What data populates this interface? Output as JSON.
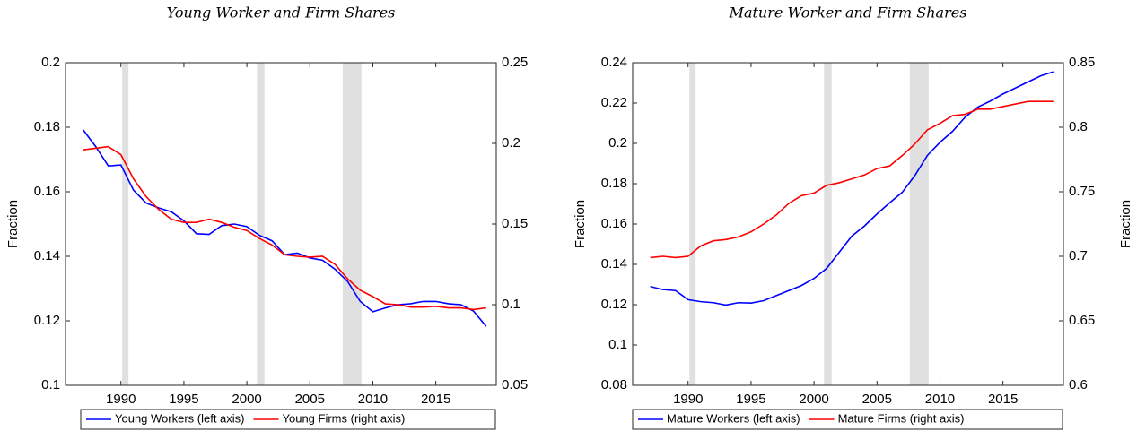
{
  "chart_data": [
    {
      "type": "line",
      "title": "Young Worker and Firm Shares",
      "x": [
        1987,
        1988,
        1989,
        1990,
        1991,
        1992,
        1993,
        1994,
        1995,
        1996,
        1997,
        1998,
        1999,
        2000,
        2001,
        2002,
        2003,
        2004,
        2005,
        2006,
        2007,
        2008,
        2009,
        2010,
        2011,
        2012,
        2013,
        2014,
        2015,
        2016,
        2017,
        2018,
        2019
      ],
      "xlim": [
        1985.6,
        2019.8
      ],
      "xticks": [
        1990,
        1995,
        2000,
        2005,
        2010,
        2015
      ],
      "ylim": [
        0.1,
        0.2
      ],
      "yticks": [
        0.1,
        0.12,
        0.14,
        0.16,
        0.18,
        0.2
      ],
      "y2lim": [
        0.05,
        0.25
      ],
      "y2ticks": [
        0.05,
        0.1,
        0.15,
        0.2,
        0.25
      ],
      "ylabel": "Fraction",
      "shading": [
        [
          1990.1,
          1990.6
        ],
        [
          2000.8,
          2001.4
        ],
        [
          2007.6,
          2009.1
        ]
      ],
      "legend": "bottom",
      "series": [
        {
          "name": "Young Workers (left axis)",
          "color": "#0000ff",
          "axis": "y",
          "values": [
            0.1792,
            0.174,
            0.168,
            0.1683,
            0.1605,
            0.1565,
            0.155,
            0.1538,
            0.151,
            0.147,
            0.1468,
            0.1495,
            0.15,
            0.1492,
            0.1465,
            0.1448,
            0.1405,
            0.141,
            0.1395,
            0.1388,
            0.136,
            0.1322,
            0.126,
            0.1228,
            0.124,
            0.125,
            0.1253,
            0.126,
            0.126,
            0.1253,
            0.125,
            0.123,
            0.1183
          ]
        },
        {
          "name": "Young Firms (right axis)",
          "color": "#ff0000",
          "axis": "y2",
          "values": [
            0.196,
            0.197,
            0.198,
            0.193,
            0.178,
            0.167,
            0.159,
            0.153,
            0.151,
            0.151,
            0.153,
            0.151,
            0.148,
            0.146,
            0.141,
            0.137,
            0.131,
            0.13,
            0.1295,
            0.13,
            0.125,
            0.116,
            0.109,
            0.105,
            0.1005,
            0.1,
            0.0985,
            0.0985,
            0.099,
            0.098,
            0.098,
            0.097,
            0.098
          ]
        }
      ]
    },
    {
      "type": "line",
      "title": "Mature Worker and Firm Shares",
      "x": [
        1987,
        1988,
        1989,
        1990,
        1991,
        1992,
        1993,
        1994,
        1995,
        1996,
        1997,
        1998,
        1999,
        2000,
        2001,
        2002,
        2003,
        2004,
        2005,
        2006,
        2007,
        2008,
        2009,
        2010,
        2011,
        2012,
        2013,
        2014,
        2015,
        2016,
        2017,
        2018,
        2019
      ],
      "xlim": [
        1985.6,
        2019.8
      ],
      "xticks": [
        1990,
        1995,
        2000,
        2005,
        2010,
        2015
      ],
      "ylim": [
        0.08,
        0.24
      ],
      "yticks": [
        0.08,
        0.1,
        0.12,
        0.14,
        0.16,
        0.18,
        0.2,
        0.22,
        0.24
      ],
      "y2lim": [
        0.6,
        0.85
      ],
      "y2ticks": [
        0.6,
        0.65,
        0.7,
        0.75,
        0.8,
        0.85
      ],
      "ylabel": "Fraction",
      "y2label": "Fraction",
      "shading": [
        [
          1990.1,
          1990.6
        ],
        [
          2000.8,
          2001.4
        ],
        [
          2007.6,
          2009.1
        ]
      ],
      "legend": "bottom",
      "series": [
        {
          "name": "Mature Workers (left axis)",
          "color": "#0000ff",
          "axis": "y",
          "values": [
            0.129,
            0.1275,
            0.127,
            0.1225,
            0.1215,
            0.121,
            0.1198,
            0.121,
            0.1208,
            0.122,
            0.1245,
            0.127,
            0.1295,
            0.133,
            0.138,
            0.146,
            0.154,
            0.159,
            0.165,
            0.1705,
            0.1757,
            0.184,
            0.194,
            0.2005,
            0.206,
            0.213,
            0.218,
            0.221,
            0.2245,
            0.2275,
            0.2305,
            0.2335,
            0.2355
          ]
        },
        {
          "name": "Mature Firms (right axis)",
          "color": "#ff0000",
          "axis": "y2",
          "values": [
            0.699,
            0.7,
            0.699,
            0.7,
            0.708,
            0.712,
            0.713,
            0.715,
            0.719,
            0.725,
            0.732,
            0.741,
            0.747,
            0.749,
            0.755,
            0.757,
            0.76,
            0.763,
            0.768,
            0.77,
            0.778,
            0.787,
            0.798,
            0.803,
            0.809,
            0.81,
            0.814,
            0.814,
            0.816,
            0.818,
            0.82,
            0.82,
            0.82
          ]
        }
      ]
    }
  ]
}
